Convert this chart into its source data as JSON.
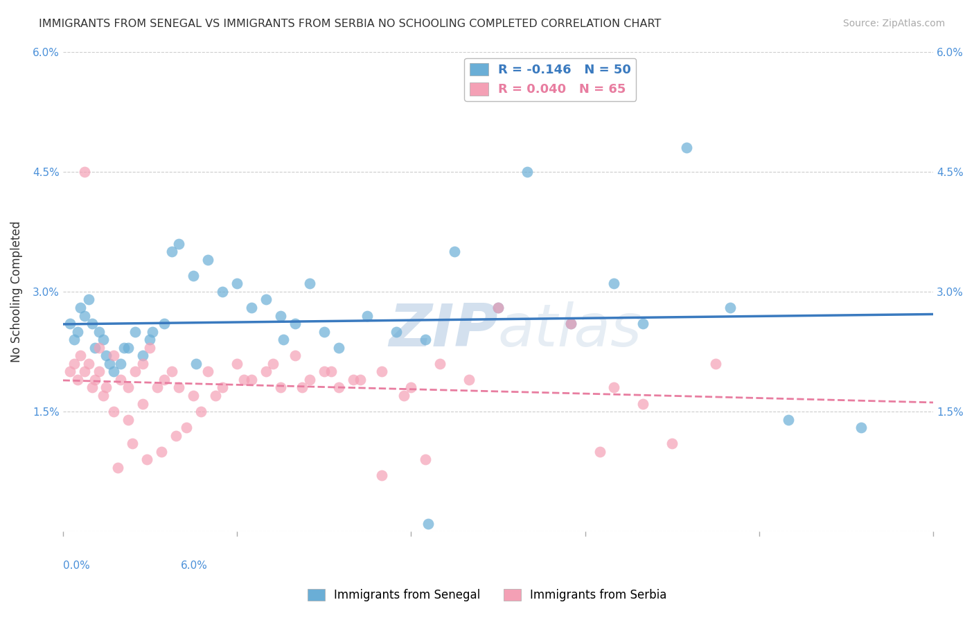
{
  "title": "IMMIGRANTS FROM SENEGAL VS IMMIGRANTS FROM SERBIA NO SCHOOLING COMPLETED CORRELATION CHART",
  "source": "Source: ZipAtlas.com",
  "ylabel": "No Schooling Completed",
  "xlim": [
    0.0,
    6.0
  ],
  "ylim": [
    0.0,
    6.0
  ],
  "yticks": [
    0.0,
    1.5,
    3.0,
    4.5,
    6.0
  ],
  "ytick_labels": [
    "",
    "1.5%",
    "3.0%",
    "4.5%",
    "6.0%"
  ],
  "xtick_positions": [
    0.0,
    1.2,
    2.4,
    3.6,
    4.8,
    6.0
  ],
  "legend_r_senegal": "-0.146",
  "legend_n_senegal": "50",
  "legend_r_serbia": "0.040",
  "legend_n_serbia": "65",
  "color_senegal": "#6aaed6",
  "color_serbia": "#f4a0b5",
  "color_senegal_line": "#3a7abf",
  "color_serbia_line": "#e87da0",
  "watermark_zip": "ZIP",
  "watermark_atlas": "atlas",
  "background_color": "#ffffff",
  "senegal_x": [
    0.05,
    0.08,
    0.1,
    0.12,
    0.15,
    0.18,
    0.2,
    0.22,
    0.25,
    0.28,
    0.3,
    0.35,
    0.4,
    0.45,
    0.5,
    0.55,
    0.6,
    0.7,
    0.75,
    0.8,
    0.9,
    1.0,
    1.1,
    1.2,
    1.3,
    1.4,
    1.5,
    1.6,
    1.7,
    1.8,
    1.9,
    2.1,
    2.3,
    2.5,
    2.7,
    3.0,
    3.2,
    3.5,
    3.8,
    4.0,
    4.3,
    4.6,
    5.0,
    5.5,
    0.32,
    0.42,
    0.62,
    0.92,
    1.52,
    2.52
  ],
  "senegal_y": [
    2.6,
    2.4,
    2.5,
    2.8,
    2.7,
    2.9,
    2.6,
    2.3,
    2.5,
    2.4,
    2.2,
    2.0,
    2.1,
    2.3,
    2.5,
    2.2,
    2.4,
    2.6,
    3.5,
    3.6,
    3.2,
    3.4,
    3.0,
    3.1,
    2.8,
    2.9,
    2.7,
    2.6,
    3.1,
    2.5,
    2.3,
    2.7,
    2.5,
    2.4,
    3.5,
    2.8,
    4.5,
    2.6,
    3.1,
    2.6,
    4.8,
    2.8,
    1.4,
    1.3,
    2.1,
    2.3,
    2.5,
    2.1,
    2.4,
    0.1
  ],
  "serbia_x": [
    0.05,
    0.08,
    0.1,
    0.12,
    0.15,
    0.18,
    0.2,
    0.22,
    0.25,
    0.28,
    0.3,
    0.35,
    0.4,
    0.45,
    0.5,
    0.55,
    0.6,
    0.7,
    0.75,
    0.8,
    0.9,
    1.0,
    1.1,
    1.2,
    1.3,
    1.4,
    1.5,
    1.6,
    1.7,
    1.8,
    1.9,
    2.0,
    2.2,
    2.4,
    2.6,
    2.8,
    3.0,
    3.5,
    4.0,
    4.5,
    0.25,
    0.35,
    0.45,
    0.55,
    0.65,
    0.85,
    0.95,
    1.05,
    1.25,
    1.45,
    1.65,
    1.85,
    2.05,
    2.35,
    0.15,
    0.38,
    0.48,
    0.58,
    0.68,
    0.78,
    3.8,
    4.2,
    3.7,
    2.2,
    2.5
  ],
  "serbia_y": [
    2.0,
    2.1,
    1.9,
    2.2,
    2.0,
    2.1,
    1.8,
    1.9,
    2.0,
    1.7,
    1.8,
    2.2,
    1.9,
    1.8,
    2.0,
    2.1,
    2.3,
    1.9,
    2.0,
    1.8,
    1.7,
    2.0,
    1.8,
    2.1,
    1.9,
    2.0,
    1.8,
    2.2,
    1.9,
    2.0,
    1.8,
    1.9,
    2.0,
    1.8,
    2.1,
    1.9,
    2.8,
    2.6,
    1.6,
    2.1,
    2.3,
    1.5,
    1.4,
    1.6,
    1.8,
    1.3,
    1.5,
    1.7,
    1.9,
    2.1,
    1.8,
    2.0,
    1.9,
    1.7,
    4.5,
    0.8,
    1.1,
    0.9,
    1.0,
    1.2,
    1.8,
    1.1,
    1.0,
    0.7,
    0.9
  ]
}
